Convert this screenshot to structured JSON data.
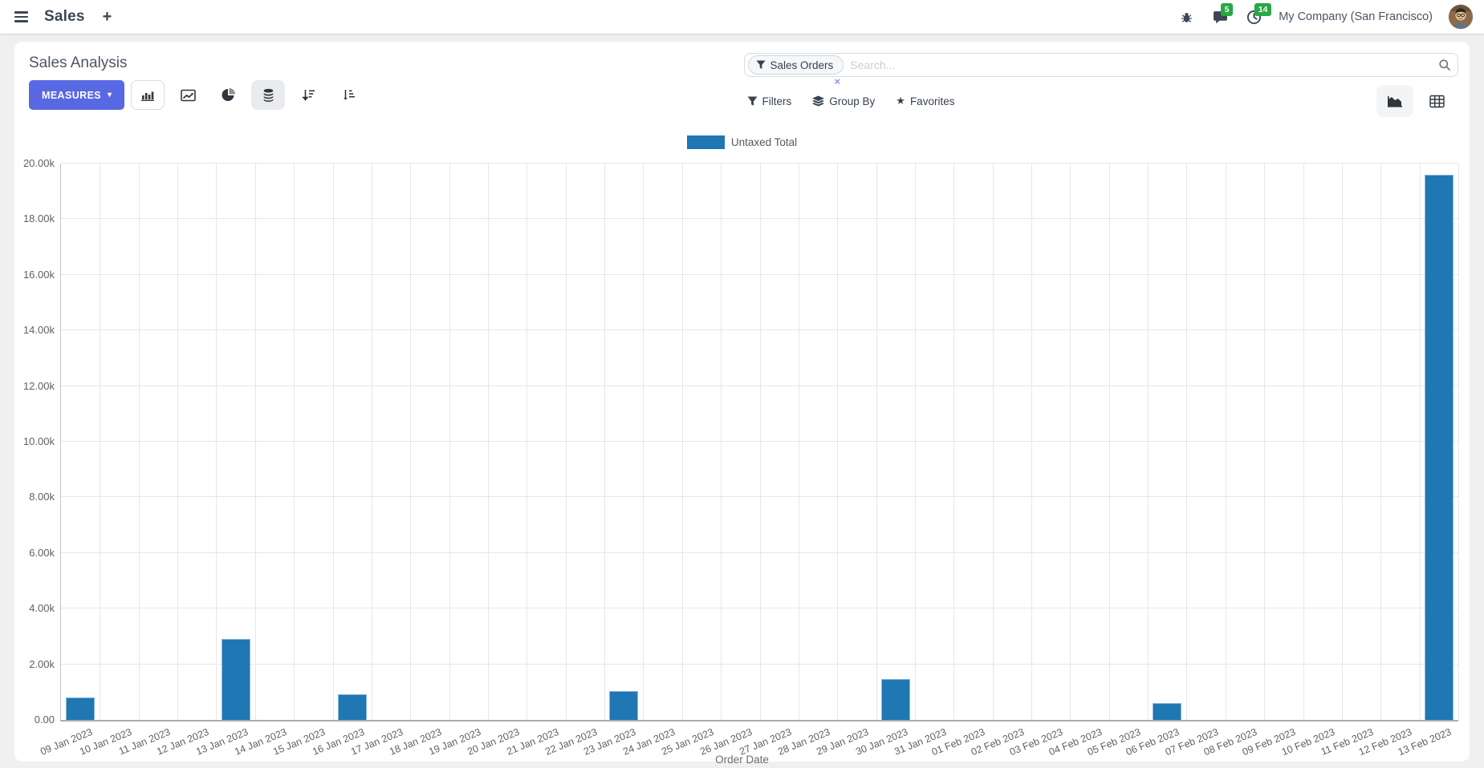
{
  "navbar": {
    "app_name": "Sales",
    "messages_badge": "5",
    "activities_badge": "14",
    "company": "My Company (San Francisco)"
  },
  "control_panel": {
    "title": "Sales Analysis",
    "measures_label": "MEASURES",
    "measures_caret": "▾",
    "search": {
      "facet_label": "Sales Orders",
      "facet_remove": "×",
      "placeholder": "Search..."
    },
    "filters_label": "Filters",
    "group_by_label": "Group By",
    "favorites_label": "Favorites"
  },
  "icons": {
    "menu": "hamburger",
    "plus": "+",
    "bug": "bug",
    "messages": "speech-bubble",
    "activities": "clock",
    "bar-chart": "column-chart",
    "line-chart": "line-chart",
    "pie-chart": "pie-chart",
    "stacked": "database-stack",
    "sort-desc": "arrow-down-wide-bars",
    "sort-asc": "arrow-down-short-bars",
    "filter": "funnel",
    "group-by": "layers",
    "favorites": "star",
    "search": "magnifier",
    "graph-view": "area-chart",
    "pivot-view": "table-grid"
  },
  "colors": {
    "bar": "#1f77b4",
    "bar_border": "#8ab6d6",
    "primary_button": "#5968e3",
    "badge_green": "#28a745",
    "grid": "#e7e7e7"
  },
  "chart_data": {
    "type": "bar",
    "title": "",
    "legend": [
      "Untaxed Total"
    ],
    "legend_position": "top",
    "grid": true,
    "xlabel": "Order Date",
    "ylabel": "",
    "ylim": [
      0,
      20000
    ],
    "ytick_step": 2000,
    "ytick_labels": [
      "0.00",
      "2.00k",
      "4.00k",
      "6.00k",
      "8.00k",
      "10.00k",
      "12.00k",
      "14.00k",
      "16.00k",
      "18.00k",
      "20.00k"
    ],
    "categories": [
      "09 Jan 2023",
      "10 Jan 2023",
      "11 Jan 2023",
      "12 Jan 2023",
      "13 Jan 2023",
      "14 Jan 2023",
      "15 Jan 2023",
      "16 Jan 2023",
      "17 Jan 2023",
      "18 Jan 2023",
      "19 Jan 2023",
      "20 Jan 2023",
      "21 Jan 2023",
      "22 Jan 2023",
      "23 Jan 2023",
      "24 Jan 2023",
      "25 Jan 2023",
      "26 Jan 2023",
      "27 Jan 2023",
      "28 Jan 2023",
      "29 Jan 2023",
      "30 Jan 2023",
      "31 Jan 2023",
      "01 Feb 2023",
      "02 Feb 2023",
      "03 Feb 2023",
      "04 Feb 2023",
      "05 Feb 2023",
      "06 Feb 2023",
      "07 Feb 2023",
      "08 Feb 2023",
      "09 Feb 2023",
      "10 Feb 2023",
      "11 Feb 2023",
      "12 Feb 2023",
      "13 Feb 2023"
    ],
    "series": [
      {
        "name": "Untaxed Total",
        "color": "#1f77b4",
        "values": [
          800,
          0,
          0,
          0,
          2900,
          0,
          0,
          930,
          0,
          0,
          0,
          0,
          0,
          0,
          1030,
          0,
          0,
          0,
          0,
          0,
          0,
          1470,
          0,
          0,
          0,
          0,
          0,
          0,
          620,
          0,
          0,
          0,
          0,
          0,
          0,
          19600
        ]
      }
    ]
  }
}
